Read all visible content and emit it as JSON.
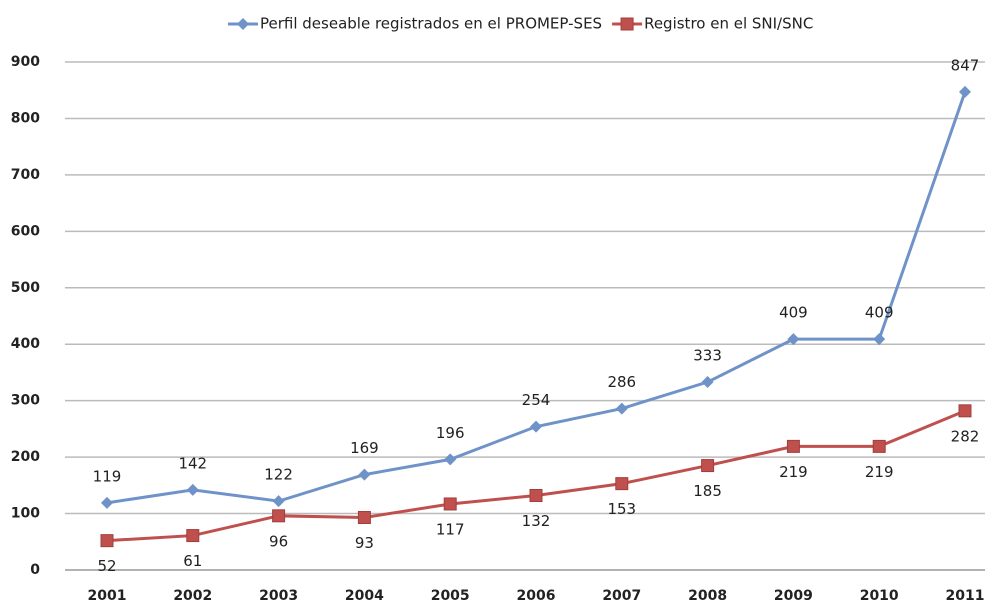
{
  "chart_data": {
    "type": "line",
    "categories": [
      "2001",
      "2002",
      "2003",
      "2004",
      "2005",
      "2006",
      "2007",
      "2008",
      "2009",
      "2010",
      "2011"
    ],
    "series": [
      {
        "name": "Perfil deseable registrados en el PROMEP-SES",
        "color": "#6f93c8",
        "marker": "diamond",
        "values": [
          119,
          142,
          122,
          169,
          196,
          254,
          286,
          333,
          409,
          409,
          847
        ]
      },
      {
        "name": "Registro  en el SNI/SNC",
        "color": "#c0504d",
        "marker": "square",
        "values": [
          52,
          61,
          96,
          93,
          117,
          132,
          153,
          185,
          219,
          219,
          282
        ]
      }
    ],
    "ylim": [
      0,
      900
    ],
    "yticks": [
      0,
      100,
      200,
      300,
      400,
      500,
      600,
      700,
      800,
      900
    ],
    "grid": true,
    "legend": "top"
  }
}
